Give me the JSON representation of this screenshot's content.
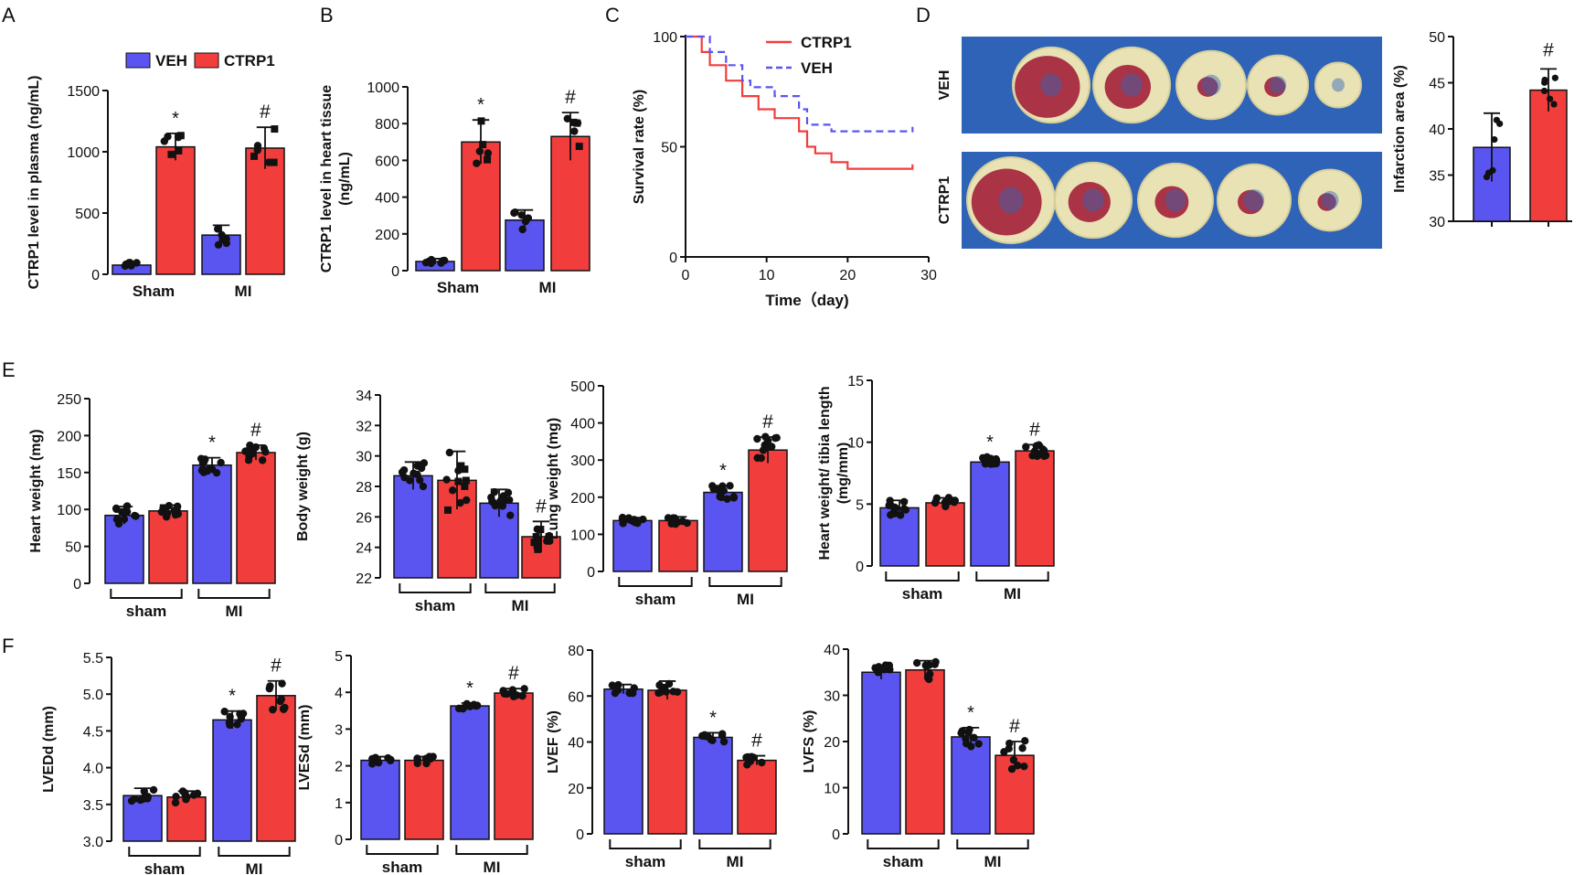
{
  "colors": {
    "veh": "#5a55f0",
    "ctrp1": "#f23d3d",
    "axis": "#111111",
    "photo_bg": "#2f63b8"
  },
  "legend": {
    "veh": "VEH",
    "ctrp1": "CTRP1"
  },
  "panel_letters": [
    "A",
    "B",
    "C",
    "D",
    "E",
    "F"
  ],
  "chart_data": [
    {
      "id": "A",
      "type": "bar",
      "ylabel": "CTRP1 level in plasma (ng/mL)",
      "ylim": [
        0,
        1500
      ],
      "yticks": [
        0,
        500,
        1000,
        1500
      ],
      "groups": [
        "Sham",
        "MI"
      ],
      "series": [
        {
          "name": "VEH",
          "values": [
            75,
            320
          ]
        },
        {
          "name": "CTRP1",
          "values": [
            1040,
            1030
          ]
        }
      ],
      "errors": [
        [
          20,
          80
        ],
        [
          110,
          170
        ]
      ],
      "sig": {
        "MI-VEH": "",
        "Sham-CTRP1": "*",
        "MI-CTRP1": "#"
      },
      "n": 6,
      "bracket": false
    },
    {
      "id": "B",
      "type": "bar",
      "ylabel": "CTRP1 level in heart tissue (ng/mL)",
      "ylim": [
        0,
        1000
      ],
      "yticks": [
        0,
        200,
        400,
        600,
        800,
        1000
      ],
      "groups": [
        "Sham",
        "MI"
      ],
      "series": [
        {
          "name": "VEH",
          "values": [
            50,
            275
          ]
        },
        {
          "name": "CTRP1",
          "values": [
            700,
            730
          ]
        }
      ],
      "errors": [
        [
          15,
          55
        ],
        [
          120,
          130
        ]
      ],
      "sig": {
        "Sham-CTRP1": "*",
        "MI-CTRP1": "#"
      },
      "n": 6,
      "bracket": false
    },
    {
      "id": "C",
      "type": "line",
      "ylabel": "Survival rate (%)",
      "xlabel": "Time（day)",
      "xlim": [
        0,
        30
      ],
      "ylim": [
        0,
        100
      ],
      "xticks": [
        0,
        10,
        20,
        30
      ],
      "yticks": [
        0,
        50,
        100
      ],
      "series": [
        {
          "name": "CTRP1",
          "style": "solid",
          "points": [
            [
              0,
              100
            ],
            [
              2,
              100
            ],
            [
              2,
              93
            ],
            [
              3,
              93
            ],
            [
              3,
              87
            ],
            [
              5,
              87
            ],
            [
              5,
              80
            ],
            [
              7,
              80
            ],
            [
              7,
              73
            ],
            [
              9,
              73
            ],
            [
              9,
              67
            ],
            [
              11,
              67
            ],
            [
              11,
              63
            ],
            [
              14,
              63
            ],
            [
              14,
              57
            ],
            [
              15,
              57
            ],
            [
              15,
              50
            ],
            [
              16,
              50
            ],
            [
              16,
              47
            ],
            [
              18,
              47
            ],
            [
              18,
              43
            ],
            [
              20,
              43
            ],
            [
              20,
              40
            ],
            [
              28,
              40
            ],
            [
              28,
              42
            ]
          ]
        },
        {
          "name": "VEH",
          "style": "dashed",
          "points": [
            [
              0,
              100
            ],
            [
              3,
              100
            ],
            [
              3,
              93
            ],
            [
              5,
              93
            ],
            [
              5,
              87
            ],
            [
              7,
              87
            ],
            [
              7,
              80
            ],
            [
              8,
              80
            ],
            [
              8,
              77
            ],
            [
              11,
              77
            ],
            [
              11,
              73
            ],
            [
              14,
              73
            ],
            [
              14,
              67
            ],
            [
              15,
              67
            ],
            [
              15,
              60
            ],
            [
              18,
              60
            ],
            [
              18,
              57
            ],
            [
              28,
              57
            ],
            [
              28,
              59
            ]
          ]
        }
      ]
    },
    {
      "id": "D",
      "type": "bar",
      "ylabel": "Infarction area (%)",
      "ylim": [
        30,
        50
      ],
      "yticks": [
        30,
        35,
        40,
        45,
        50
      ],
      "categories": [
        "VEH",
        "CTRP1"
      ],
      "values": [
        38,
        44.2
      ],
      "errors": [
        3.7,
        2.3
      ],
      "sig": {
        "CTRP1": "#"
      },
      "photo_labels": [
        "VEH",
        "CTRP1"
      ]
    },
    {
      "id": "E1",
      "type": "bar",
      "ylabel": "Heart weight (mg)",
      "ylim": [
        0,
        250
      ],
      "yticks": [
        0,
        50,
        100,
        150,
        200,
        250
      ],
      "groups": [
        "sham",
        "MI"
      ],
      "series": [
        {
          "name": "VEH",
          "values": [
            92,
            160
          ]
        },
        {
          "name": "CTRP1",
          "values": [
            98,
            177
          ]
        }
      ],
      "errors": [
        [
          12,
          10
        ],
        [
          8,
          10
        ]
      ],
      "sig": {
        "MI-VEH": "*",
        "MI-CTRP1": "#"
      },
      "n": 12,
      "bracket": true
    },
    {
      "id": "E2",
      "type": "bar",
      "ylabel": "Body weight (g)",
      "ylim": [
        22,
        34
      ],
      "yticks": [
        22,
        24,
        26,
        28,
        30,
        32,
        34
      ],
      "groups": [
        "sham",
        "MI"
      ],
      "series": [
        {
          "name": "VEH",
          "values": [
            28.7,
            26.9
          ]
        },
        {
          "name": "CTRP1",
          "values": [
            28.4,
            24.7
          ]
        }
      ],
      "errors": [
        [
          0.9,
          0.9
        ],
        [
          1.9,
          1.0
        ]
      ],
      "sig": {
        "MI-CTRP1": "#"
      },
      "n": 12,
      "bracket": true
    },
    {
      "id": "E3",
      "type": "bar",
      "ylabel": "Lung weight (mg)",
      "ylim": [
        0,
        500
      ],
      "yticks": [
        0,
        100,
        200,
        300,
        400,
        500
      ],
      "groups": [
        "sham",
        "MI"
      ],
      "series": [
        {
          "name": "VEH",
          "values": [
            137,
            213
          ]
        },
        {
          "name": "CTRP1",
          "values": [
            137,
            327
          ]
        }
      ],
      "errors": [
        [
          8,
          18
        ],
        [
          10,
          35
        ]
      ],
      "sig": {
        "MI-VEH": "*",
        "MI-CTRP1": "#"
      },
      "n": 12,
      "bracket": true
    },
    {
      "id": "E4",
      "type": "bar",
      "ylabel": "Heart weight/ tibia length (mg/mm)",
      "ylim": [
        0,
        15
      ],
      "yticks": [
        0,
        5,
        10,
        15
      ],
      "groups": [
        "sham",
        "MI"
      ],
      "series": [
        {
          "name": "VEH",
          "values": [
            4.7,
            8.4
          ]
        },
        {
          "name": "CTRP1",
          "values": [
            5.1,
            9.3
          ]
        }
      ],
      "errors": [
        [
          0.6,
          0.4
        ],
        [
          0.4,
          0.5
        ]
      ],
      "sig": {
        "MI-VEH": "*",
        "MI-CTRP1": "#"
      },
      "n": 12,
      "bracket": true
    },
    {
      "id": "F1",
      "type": "bar",
      "ylabel": "LVEDd (mm)",
      "ylim": [
        3.0,
        5.5
      ],
      "yticks": [
        3.0,
        3.5,
        4.0,
        4.5,
        5.0,
        5.5
      ],
      "groups": [
        "sham",
        "MI"
      ],
      "series": [
        {
          "name": "VEH",
          "values": [
            3.62,
            4.65
          ]
        },
        {
          "name": "CTRP1",
          "values": [
            3.6,
            4.98
          ]
        }
      ],
      "errors": [
        [
          0.1,
          0.12
        ],
        [
          0.08,
          0.2
        ]
      ],
      "sig": {
        "MI-VEH": "*",
        "MI-CTRP1": "#"
      },
      "n": 9,
      "bracket": true
    },
    {
      "id": "F2",
      "type": "bar",
      "ylabel": "LVESd (mm)",
      "ylim": [
        0,
        5
      ],
      "yticks": [
        0,
        1,
        2,
        3,
        4,
        5
      ],
      "groups": [
        "sham",
        "MI"
      ],
      "series": [
        {
          "name": "VEH",
          "values": [
            2.15,
            3.63
          ]
        },
        {
          "name": "CTRP1",
          "values": [
            2.15,
            3.98
          ]
        }
      ],
      "errors": [
        [
          0.1,
          0.08
        ],
        [
          0.1,
          0.12
        ]
      ],
      "sig": {
        "MI-VEH": "*",
        "MI-CTRP1": "#"
      },
      "n": 9,
      "bracket": true
    },
    {
      "id": "F3",
      "type": "bar",
      "ylabel": "LVEF (%)",
      "ylim": [
        0,
        80
      ],
      "yticks": [
        0,
        20,
        40,
        60,
        80
      ],
      "groups": [
        "sham",
        "MI"
      ],
      "series": [
        {
          "name": "VEH",
          "values": [
            63,
            42
          ]
        },
        {
          "name": "CTRP1",
          "values": [
            62.5,
            32
          ]
        }
      ],
      "errors": [
        [
          2,
          2
        ],
        [
          4,
          2
        ]
      ],
      "sig": {
        "MI-VEH": "*",
        "MI-CTRP1": "#"
      },
      "n": 9,
      "bracket": true
    },
    {
      "id": "F4",
      "type": "bar",
      "ylabel": "LVFS (%)",
      "ylim": [
        0,
        40
      ],
      "yticks": [
        0,
        10,
        20,
        30,
        40
      ],
      "groups": [
        "sham",
        "MI"
      ],
      "series": [
        {
          "name": "VEH",
          "values": [
            35,
            21
          ]
        },
        {
          "name": "CTRP1",
          "values": [
            35.5,
            17
          ]
        }
      ],
      "errors": [
        [
          1.5,
          2
        ],
        [
          2,
          3
        ]
      ],
      "sig": {
        "MI-VEH": "*",
        "MI-CTRP1": "#"
      },
      "n": 9,
      "bracket": true
    }
  ]
}
